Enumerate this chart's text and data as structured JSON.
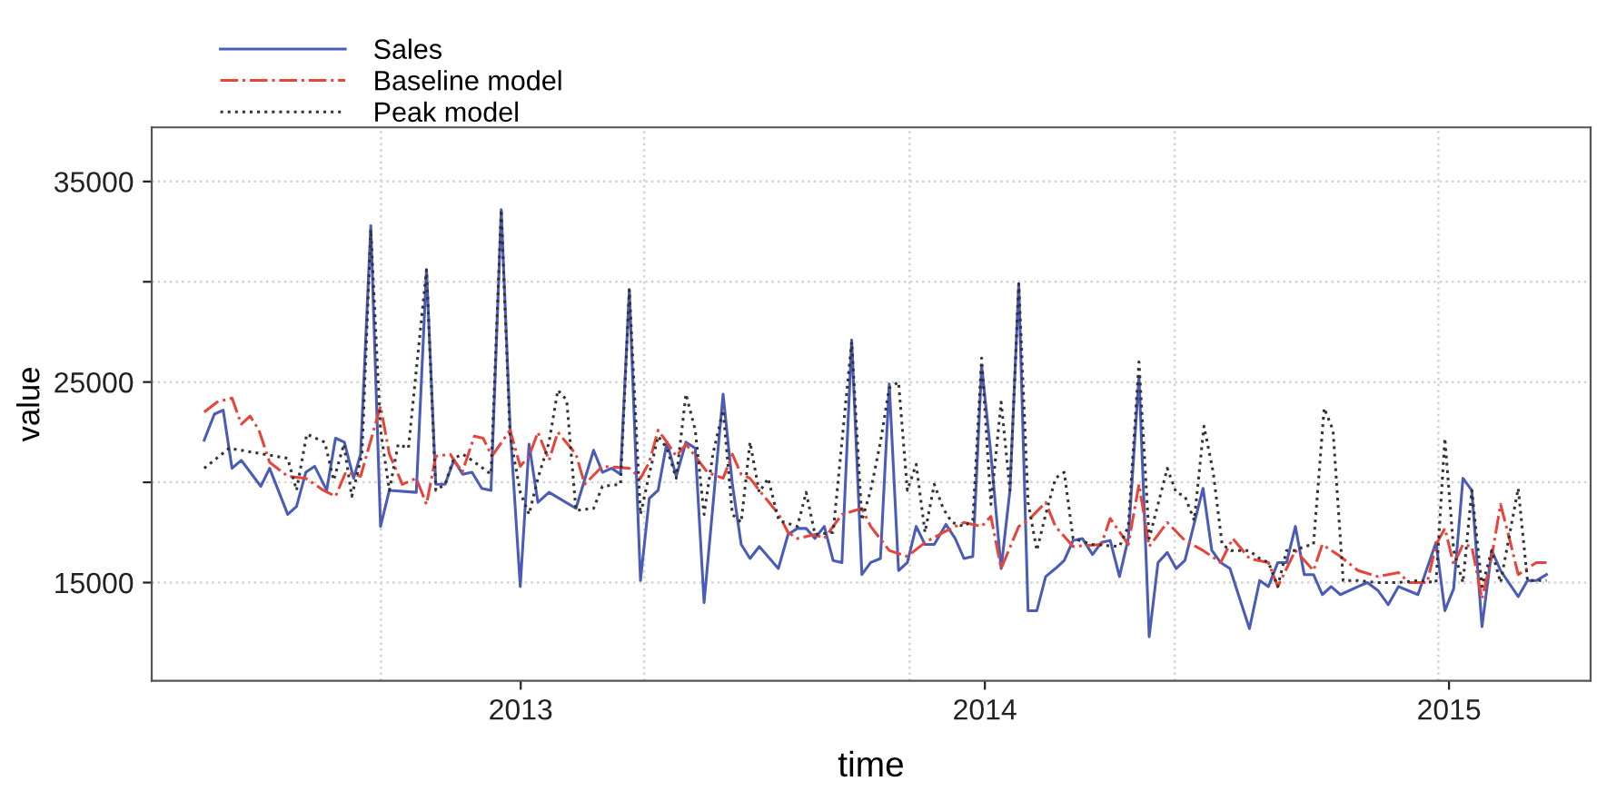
{
  "chart_data": {
    "type": "line",
    "xlabel": "time",
    "ylabel": "value",
    "xlim": [
      2012.205,
      2015.305
    ],
    "ylim": [
      10100,
      37700
    ],
    "xticks": [
      2013,
      2014,
      2015
    ],
    "yticks": [
      15000,
      {
        "value": 20000,
        "label": null
      },
      25000,
      {
        "value": 30000,
        "label": null
      },
      35000
    ],
    "grid": "y",
    "legend": "top left",
    "ref_lines": [
      {
        "axis": "x",
        "value": 2012.699,
        "color": "#d3d3d3",
        "line_style": "dotted"
      },
      {
        "axis": "x",
        "value": 2013.266,
        "color": "#d3d3d3",
        "line_style": "dotted"
      },
      {
        "axis": "x",
        "value": 2013.838,
        "color": "#d3d3d3",
        "line_style": "dotted"
      },
      {
        "axis": "x",
        "value": 2014.409,
        "color": "#d3d3d3",
        "line_style": "dotted"
      },
      {
        "axis": "x",
        "value": 2014.977,
        "color": "#d3d3d3",
        "line_style": "dotted"
      }
    ],
    "series": [
      {
        "name": "Sales",
        "color": "#4a5cb8",
        "line_style": "solid",
        "x": [
          2012.318,
          2012.34,
          2012.359,
          2012.378,
          2012.398,
          2012.44,
          2012.459,
          2012.498,
          2012.517,
          2012.537,
          2012.556,
          2012.582,
          2012.601,
          2012.62,
          2012.64,
          2012.655,
          2012.677,
          2012.698,
          2012.717,
          2012.775,
          2012.797,
          2012.817,
          2012.837,
          2012.856,
          2012.875,
          2012.895,
          2012.916,
          2012.936,
          2012.958,
          2012.977,
          2012.999,
          2013.018,
          2013.037,
          2013.061,
          2013.119,
          2013.157,
          2013.176,
          2013.196,
          2013.215,
          2013.234,
          2013.258,
          2013.277,
          2013.296,
          2013.315,
          2013.335,
          2013.356,
          2013.376,
          2013.395,
          2013.436,
          2013.456,
          2013.475,
          2013.494,
          2013.514,
          2013.555,
          2013.576,
          2013.596,
          2013.615,
          2013.634,
          2013.654,
          2013.673,
          2013.692,
          2013.713,
          2013.735,
          2013.754,
          2013.775,
          2013.794,
          2013.814,
          2013.833,
          2013.852,
          2013.871,
          2013.891,
          2013.916,
          2013.936,
          2013.955,
          2013.974,
          2013.993,
          2014.013,
          2014.035,
          2014.054,
          2014.073,
          2014.093,
          2014.112,
          2014.131,
          2014.152,
          2014.171,
          2014.19,
          2014.21,
          2014.232,
          2014.251,
          2014.27,
          2014.29,
          2014.309,
          2014.332,
          2014.354,
          2014.373,
          2014.393,
          2014.412,
          2014.431,
          2014.47,
          2014.489,
          2014.508,
          2014.528,
          2014.57,
          2014.592,
          2014.611,
          2014.631,
          2014.65,
          2014.669,
          2014.688,
          2014.708,
          2014.727,
          2014.746,
          2014.766,
          2014.804,
          2014.824,
          2014.847,
          2014.869,
          2014.891,
          2014.933,
          2014.972,
          2014.991,
          2015.01,
          2015.03,
          2015.049,
          2015.071,
          2015.092,
          2015.111,
          2015.149,
          2015.169,
          2015.188,
          2015.21
        ],
        "values": [
          22100,
          23400,
          23600,
          20700,
          21100,
          19800,
          20700,
          18400,
          18800,
          20500,
          20800,
          19600,
          22200,
          22000,
          20200,
          21400,
          32800,
          17800,
          19600,
          19500,
          30600,
          19900,
          19900,
          21100,
          20400,
          20500,
          19700,
          19600,
          33600,
          22800,
          14800,
          21900,
          19000,
          19500,
          18700,
          21600,
          20500,
          20700,
          20400,
          29600,
          15100,
          19200,
          19600,
          22000,
          20300,
          22000,
          21700,
          14000,
          24400,
          19900,
          16900,
          16200,
          16800,
          15700,
          17400,
          17700,
          17700,
          17200,
          17800,
          16100,
          16000,
          27100,
          15400,
          16000,
          16200,
          24900,
          15600,
          16000,
          17800,
          16900,
          16900,
          17900,
          17200,
          16200,
          16300,
          25800,
          21400,
          15700,
          19600,
          29900,
          13600,
          13600,
          15300,
          15700,
          16100,
          17100,
          17200,
          16400,
          17000,
          17100,
          15300,
          17200,
          25300,
          12300,
          16000,
          16500,
          15700,
          16100,
          19700,
          16600,
          16000,
          15700,
          12700,
          15100,
          14800,
          16000,
          16000,
          17800,
          15400,
          15400,
          14400,
          14800,
          14400,
          14800,
          15000,
          14600,
          13900,
          14800,
          14400,
          17000,
          13600,
          14700,
          20200,
          19600,
          12800,
          16600,
          15600,
          14300,
          15100,
          15100,
          15400
        ]
      },
      {
        "name": "Baseline model",
        "color": "#e8443a",
        "line_style": "dashdot",
        "x": [
          2012.318,
          2012.346,
          2012.378,
          2012.398,
          2012.417,
          2012.436,
          2012.459,
          2012.498,
          2012.537,
          2012.575,
          2012.601,
          2012.623,
          2012.655,
          2012.698,
          2012.717,
          2012.745,
          2012.775,
          2012.797,
          2012.817,
          2012.848,
          2012.874,
          2012.9,
          2012.919,
          2012.938,
          2012.977,
          2012.999,
          2013.018,
          2013.037,
          2013.061,
          2013.08,
          2013.119,
          2013.138,
          2013.176,
          2013.234,
          2013.258,
          2013.277,
          2013.296,
          2013.315,
          2013.335,
          2013.356,
          2013.376,
          2013.402,
          2013.436,
          2013.456,
          2013.475,
          2013.494,
          2013.514,
          2013.556,
          2013.576,
          2013.596,
          2013.634,
          2013.654,
          2013.692,
          2013.735,
          2013.754,
          2013.794,
          2013.833,
          2013.871,
          2013.91,
          2013.955,
          2013.993,
          2014.013,
          2014.035,
          2014.073,
          2014.093,
          2014.131,
          2014.152,
          2014.19,
          2014.251,
          2014.27,
          2014.309,
          2014.332,
          2014.354,
          2014.393,
          2014.431,
          2014.47,
          2014.508,
          2014.534,
          2014.57,
          2014.611,
          2014.631,
          2014.669,
          2014.708,
          2014.727,
          2014.766,
          2014.804,
          2014.847,
          2014.891,
          2014.914,
          2014.953,
          2014.972,
          2014.991,
          2015.01,
          2015.03,
          2015.049,
          2015.071,
          2015.092,
          2015.111,
          2015.13,
          2015.149,
          2015.188,
          2015.21
        ],
        "values": [
          23500,
          24000,
          24200,
          22900,
          23300,
          22600,
          21000,
          20300,
          20200,
          19600,
          19300,
          20500,
          20300,
          23800,
          21400,
          19900,
          20200,
          18900,
          21300,
          21400,
          20500,
          22300,
          22200,
          21300,
          22600,
          20800,
          21300,
          22500,
          21100,
          22500,
          21400,
          19900,
          20800,
          20700,
          20200,
          21000,
          22600,
          22000,
          21300,
          21900,
          21300,
          20500,
          20200,
          21400,
          20400,
          20200,
          19600,
          18400,
          17500,
          17200,
          17400,
          17200,
          18400,
          18700,
          17800,
          16600,
          16300,
          17000,
          17500,
          18000,
          17800,
          18300,
          15700,
          17800,
          18100,
          19000,
          17800,
          16800,
          16900,
          18200,
          16900,
          19900,
          16800,
          18000,
          17100,
          16600,
          16000,
          17200,
          16200,
          16000,
          14800,
          16600,
          15600,
          16900,
          16300,
          15600,
          15300,
          15500,
          15000,
          15000,
          16900,
          17700,
          15900,
          16900,
          16800,
          14200,
          16300,
          18900,
          17200,
          15400,
          16000,
          16000
        ]
      },
      {
        "name": "Peak model",
        "color": "#333333",
        "line_style": "dotted",
        "x": [
          2012.318,
          2012.372,
          2012.498,
          2012.517,
          2012.539,
          2012.578,
          2012.597,
          2012.619,
          2012.636,
          2012.658,
          2012.677,
          2012.698,
          2012.717,
          2012.736,
          2012.758,
          2012.797,
          2012.817,
          2012.837,
          2012.856,
          2012.875,
          2012.895,
          2012.936,
          2012.958,
          2012.977,
          2012.999,
          2013.018,
          2013.037,
          2013.061,
          2013.08,
          2013.099,
          2013.119,
          2013.157,
          2013.176,
          2013.215,
          2013.234,
          2013.258,
          2013.277,
          2013.296,
          2013.315,
          2013.335,
          2013.356,
          2013.376,
          2013.395,
          2013.414,
          2013.436,
          2013.456,
          2013.475,
          2013.494,
          2013.514,
          2013.533,
          2013.556,
          2013.596,
          2013.615,
          2013.634,
          2013.673,
          2013.713,
          2013.735,
          2013.754,
          2013.775,
          2013.794,
          2013.814,
          2013.833,
          2013.852,
          2013.871,
          2013.891,
          2013.91,
          2013.929,
          2013.955,
          2013.974,
          2013.993,
          2014.013,
          2014.035,
          2014.054,
          2014.073,
          2014.093,
          2014.112,
          2014.131,
          2014.152,
          2014.171,
          2014.19,
          2014.232,
          2014.29,
          2014.309,
          2014.332,
          2014.354,
          2014.393,
          2014.412,
          2014.431,
          2014.451,
          2014.472,
          2014.492,
          2014.511,
          2014.53,
          2014.569,
          2014.592,
          2014.611,
          2014.631,
          2014.65,
          2014.669,
          2014.688,
          2014.708,
          2014.731,
          2014.75,
          2014.772,
          2014.804,
          2014.847,
          2014.891,
          2014.933,
          2014.972,
          2014.991,
          2015.01,
          2015.03,
          2015.049,
          2015.071,
          2015.092,
          2015.111,
          2015.149,
          2015.169,
          2015.21
        ],
        "values": [
          20700,
          21700,
          21200,
          19600,
          22400,
          22000,
          20100,
          21900,
          19300,
          21400,
          32600,
          22600,
          19600,
          21900,
          21700,
          30600,
          19600,
          19900,
          21200,
          21400,
          21100,
          20400,
          33600,
          22300,
          19500,
          18400,
          20200,
          22000,
          24600,
          24100,
          18600,
          18700,
          19800,
          19900,
          29600,
          18400,
          20400,
          22300,
          21700,
          20200,
          24400,
          22600,
          18400,
          21400,
          23600,
          18400,
          18000,
          22000,
          19500,
          20200,
          18100,
          17800,
          19500,
          17400,
          17500,
          27000,
          18100,
          19600,
          22000,
          24700,
          25000,
          19600,
          20900,
          17500,
          19900,
          18700,
          18000,
          17800,
          18100,
          26200,
          18900,
          24000,
          19600,
          29900,
          19000,
          16600,
          18400,
          20200,
          20500,
          17200,
          16900,
          16800,
          17800,
          26000,
          17200,
          20700,
          19500,
          19300,
          18100,
          22800,
          20500,
          16900,
          16600,
          16600,
          16200,
          16000,
          14800,
          16600,
          16600,
          16800,
          16900,
          23700,
          22600,
          15100,
          15100,
          15000,
          15000,
          15100,
          15000,
          22200,
          16600,
          15000,
          19600,
          14800,
          16600,
          15000,
          19700,
          15100,
          15100
        ]
      }
    ]
  }
}
